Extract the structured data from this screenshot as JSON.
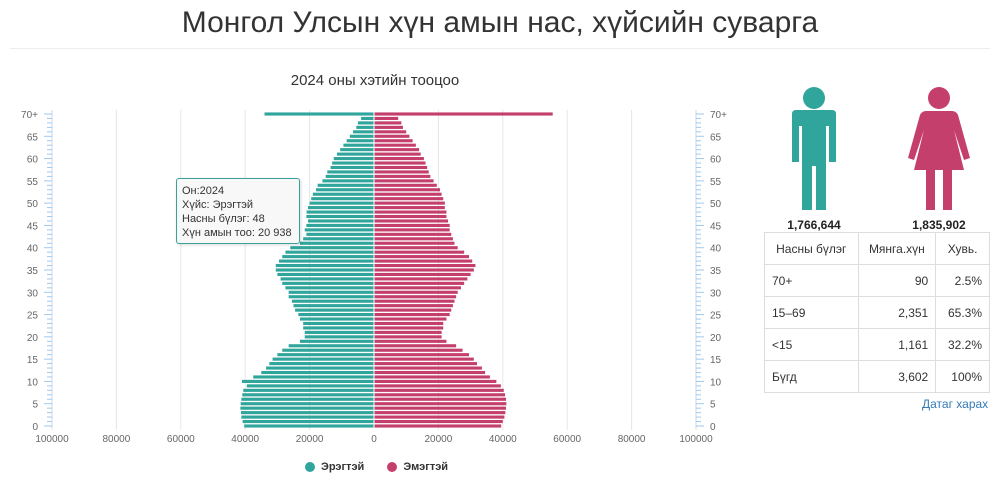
{
  "page": {
    "title": "Монгол Улсын хүн амын нас, хүйсийн суварга"
  },
  "chart_data": {
    "type": "bar",
    "orientation": "horizontal-pyramid",
    "title": "2024 оны хэтийн тооцоо",
    "x_ticks": [
      "100000",
      "80000",
      "60000",
      "40000",
      "20000",
      "0",
      "20000",
      "40000",
      "60000",
      "80000",
      "100000"
    ],
    "xlim": [
      -100000,
      100000
    ],
    "y_tick_labels": [
      "0",
      "5",
      "10",
      "15",
      "20",
      "25",
      "30",
      "35",
      "40",
      "45",
      "50",
      "55",
      "60",
      "65",
      "70+"
    ],
    "ages": [
      0,
      1,
      2,
      3,
      4,
      5,
      6,
      7,
      8,
      9,
      10,
      11,
      12,
      13,
      14,
      15,
      16,
      17,
      18,
      19,
      20,
      21,
      22,
      23,
      24,
      25,
      26,
      27,
      28,
      29,
      30,
      31,
      32,
      33,
      34,
      35,
      36,
      37,
      38,
      39,
      40,
      41,
      42,
      43,
      44,
      45,
      46,
      47,
      48,
      49,
      50,
      51,
      52,
      53,
      54,
      55,
      56,
      57,
      58,
      59,
      60,
      61,
      62,
      63,
      64,
      65,
      66,
      67,
      68,
      69,
      70
    ],
    "series": [
      {
        "name": "Эрэгтэй",
        "color": "#2fa59c",
        "values": [
          40300,
          40800,
          41200,
          41300,
          41500,
          41400,
          41200,
          40900,
          40600,
          39500,
          41000,
          37500,
          35000,
          33500,
          32500,
          31500,
          30000,
          28500,
          26500,
          23000,
          21500,
          21500,
          22000,
          22000,
          23000,
          23500,
          24500,
          25000,
          25500,
          26500,
          26500,
          27500,
          28500,
          29000,
          30000,
          30500,
          30500,
          29500,
          28500,
          27500,
          26000,
          23000,
          22000,
          21000,
          21500,
          21000,
          20500,
          21000,
          20938,
          20500,
          20000,
          19500,
          19000,
          18000,
          17500,
          16000,
          15000,
          14500,
          13500,
          13000,
          12500,
          11500,
          10500,
          9500,
          8500,
          7500,
          6500,
          5500,
          5000,
          4000,
          34000
        ]
      },
      {
        "name": "Эмэгтэй",
        "color": "#c53f6d",
        "values": [
          39500,
          40000,
          40500,
          40800,
          41000,
          41100,
          41000,
          40700,
          40300,
          39400,
          38000,
          36000,
          34500,
          33500,
          32000,
          31000,
          29500,
          27500,
          25500,
          22500,
          21000,
          21000,
          21500,
          21500,
          22500,
          23500,
          24000,
          24500,
          25000,
          25500,
          26000,
          27000,
          28000,
          29000,
          30000,
          31000,
          31500,
          30500,
          29500,
          28000,
          26000,
          25000,
          24500,
          24000,
          23500,
          23500,
          23000,
          22500,
          22500,
          22000,
          22000,
          21500,
          21000,
          20500,
          19500,
          18500,
          17500,
          17000,
          16500,
          16000,
          15500,
          14500,
          14000,
          13000,
          12000,
          11000,
          10000,
          9000,
          8500,
          7500,
          55500
        ]
      }
    ],
    "tooltip": {
      "line1": "Он:2024",
      "line2": "Хүйс: Эрэгтэй",
      "line3": "Насны бүлэг: 48",
      "line4": "Хүн амын тоо: 20 938"
    },
    "legend_position": "bottom"
  },
  "figures": {
    "male_count": "1,766,644",
    "female_count": "1,835,902",
    "male_color": "#2fa59c",
    "female_color": "#c53f6d"
  },
  "table": {
    "headers": [
      "Насны бүлэг",
      "Мянга.хүн",
      "Хувь."
    ],
    "rows": [
      [
        "70+",
        "90",
        "2.5%"
      ],
      [
        "15–69",
        "2,351",
        "65.3%"
      ],
      [
        "<15",
        "1,161",
        "32.2%"
      ],
      [
        "Бүгд",
        "3,602",
        "100%"
      ]
    ]
  },
  "link": {
    "label": "Датаг харах"
  }
}
